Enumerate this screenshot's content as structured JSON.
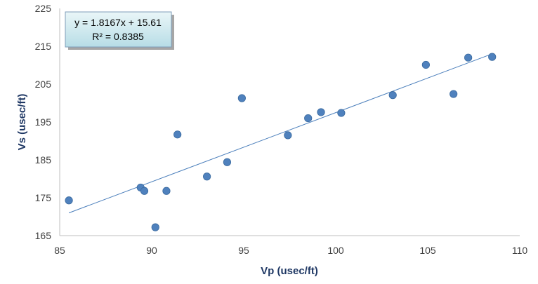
{
  "chart_data": {
    "type": "scatter",
    "title": "",
    "xlabel": "Vp (usec/ft)",
    "ylabel": "Vs (usec/ft)",
    "xlim": [
      85,
      110
    ],
    "ylim": [
      165,
      225
    ],
    "xticks": [
      "85",
      "90",
      "95",
      "100",
      "105",
      "110"
    ],
    "yticks": [
      "165",
      "175",
      "185",
      "195",
      "205",
      "215",
      "225"
    ],
    "grid": false,
    "legend": "none",
    "marker_color": "#4f81bd",
    "trendline_color": "#4a7ebb",
    "points": [
      {
        "x": 85.5,
        "y": 174.3
      },
      {
        "x": 89.4,
        "y": 177.7
      },
      {
        "x": 89.6,
        "y": 176.8
      },
      {
        "x": 90.2,
        "y": 167.2
      },
      {
        "x": 90.8,
        "y": 176.8
      },
      {
        "x": 91.4,
        "y": 191.7
      },
      {
        "x": 93.0,
        "y": 180.6
      },
      {
        "x": 94.1,
        "y": 184.4
      },
      {
        "x": 94.9,
        "y": 201.3
      },
      {
        "x": 97.4,
        "y": 191.5
      },
      {
        "x": 98.5,
        "y": 196.0
      },
      {
        "x": 99.2,
        "y": 197.6
      },
      {
        "x": 100.3,
        "y": 197.4
      },
      {
        "x": 103.1,
        "y": 202.1
      },
      {
        "x": 104.9,
        "y": 210.1
      },
      {
        "x": 106.4,
        "y": 202.4
      },
      {
        "x": 107.2,
        "y": 212.0
      },
      {
        "x": 108.5,
        "y": 212.2
      }
    ],
    "trendline": {
      "slope": 1.8167,
      "intercept": 15.61,
      "x_range": [
        85.5,
        108.5
      ],
      "y_range": [
        171.0,
        213.0
      ]
    },
    "annotation": {
      "equation": "y = 1.8167x + 15.61",
      "r_squared": "R² = 0.8385"
    }
  }
}
